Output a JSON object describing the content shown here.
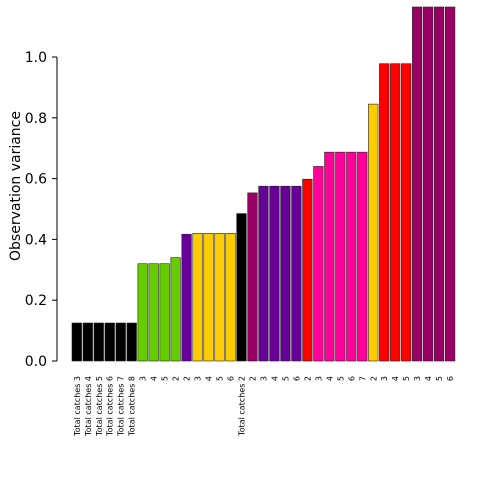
{
  "chart_data": {
    "type": "bar",
    "title": "",
    "xlabel": "",
    "ylabel": "Observation variance",
    "ylim": [
      0,
      1.15
    ],
    "yticks": [
      "0.0",
      "0.2",
      "0.4",
      "0.6",
      "0.8",
      "1.0"
    ],
    "grid": false,
    "bars": [
      {
        "label": "Total catches 3",
        "value": 0.125,
        "color": "#000000"
      },
      {
        "label": "Total catches 4",
        "value": 0.125,
        "color": "#000000"
      },
      {
        "label": "Total catches 5",
        "value": 0.125,
        "color": "#000000"
      },
      {
        "label": "Total catches 6",
        "value": 0.125,
        "color": "#000000"
      },
      {
        "label": "Total catches 7",
        "value": 0.125,
        "color": "#000000"
      },
      {
        "label": "Total catches 8",
        "value": 0.125,
        "color": "#000000"
      },
      {
        "label": "3",
        "value": 0.32,
        "color": "#66cc00"
      },
      {
        "label": "4",
        "value": 0.32,
        "color": "#66cc00"
      },
      {
        "label": "5",
        "value": 0.32,
        "color": "#66cc00"
      },
      {
        "label": "2",
        "value": 0.34,
        "color": "#66cc00"
      },
      {
        "label": "2",
        "value": 0.417,
        "color": "#660099"
      },
      {
        "label": "3",
        "value": 0.42,
        "color": "#ffcc00"
      },
      {
        "label": "4",
        "value": 0.42,
        "color": "#ffcc00"
      },
      {
        "label": "5",
        "value": 0.42,
        "color": "#ffcc00"
      },
      {
        "label": "6",
        "value": 0.42,
        "color": "#ffcc00"
      },
      {
        "label": "Total catches 2",
        "value": 0.485,
        "color": "#000000"
      },
      {
        "label": "2",
        "value": 0.553,
        "color": "#990066"
      },
      {
        "label": "3",
        "value": 0.575,
        "color": "#660099"
      },
      {
        "label": "4",
        "value": 0.575,
        "color": "#660099"
      },
      {
        "label": "5",
        "value": 0.575,
        "color": "#660099"
      },
      {
        "label": "6",
        "value": 0.575,
        "color": "#660099"
      },
      {
        "label": "2",
        "value": 0.598,
        "color": "#ff0000"
      },
      {
        "label": "3",
        "value": 0.64,
        "color": "#ff0099"
      },
      {
        "label": "4",
        "value": 0.687,
        "color": "#ff0099"
      },
      {
        "label": "5",
        "value": 0.687,
        "color": "#ff0099"
      },
      {
        "label": "6",
        "value": 0.687,
        "color": "#ff0099"
      },
      {
        "label": "7",
        "value": 0.687,
        "color": "#ff0099"
      },
      {
        "label": "2",
        "value": 0.845,
        "color": "#ffcc00"
      },
      {
        "label": "3",
        "value": 0.978,
        "color": "#ff0000"
      },
      {
        "label": "4",
        "value": 0.978,
        "color": "#ff0000"
      },
      {
        "label": "5",
        "value": 0.978,
        "color": "#ff0000"
      },
      {
        "label": "3",
        "value": 1.165,
        "color": "#990066"
      },
      {
        "label": "4",
        "value": 1.165,
        "color": "#990066"
      },
      {
        "label": "5",
        "value": 1.165,
        "color": "#990066"
      },
      {
        "label": "6",
        "value": 1.165,
        "color": "#990066"
      }
    ]
  }
}
